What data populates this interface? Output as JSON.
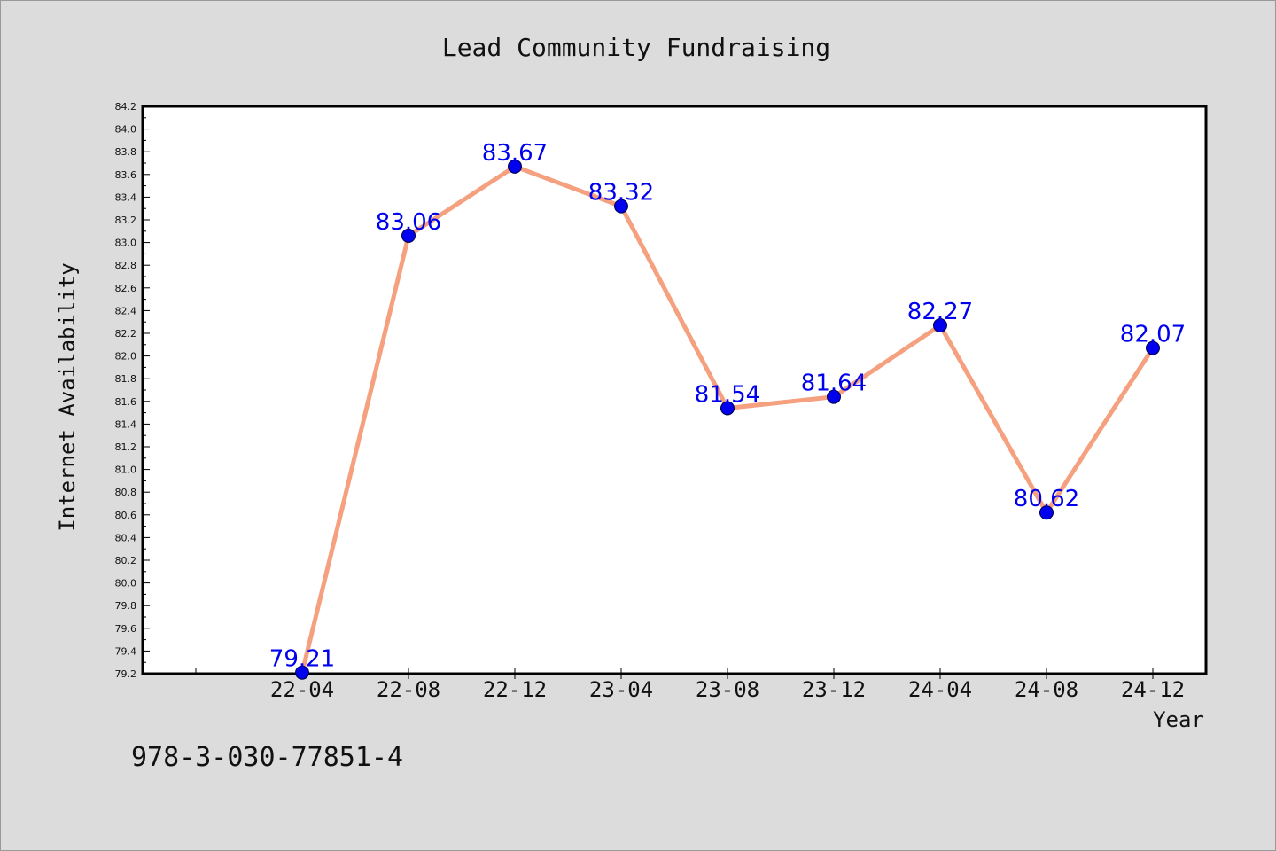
{
  "chart_data": {
    "type": "line",
    "title": "Lead Community Fundraising",
    "xlabel": "Year",
    "ylabel": "Internet Availability",
    "categories": [
      "22-04",
      "22-08",
      "22-12",
      "23-04",
      "23-08",
      "23-12",
      "24-04",
      "24-08",
      "24-12"
    ],
    "values": [
      79.21,
      83.06,
      83.67,
      83.32,
      81.54,
      81.64,
      82.27,
      80.62,
      82.07
    ],
    "data_labels": [
      "79.21",
      "83.06",
      "83.67",
      "83.32",
      "81.54",
      "81.64",
      "82.27",
      "80.62",
      "82.07"
    ],
    "ylim": [
      79.2,
      84.2
    ],
    "yticks": [
      "79.2",
      "79.4",
      "79.6",
      "79.8",
      "80.0",
      "80.2",
      "80.4",
      "80.6",
      "80.8",
      "81.0",
      "81.2",
      "81.4",
      "81.6",
      "81.8",
      "82.0",
      "82.2",
      "82.4",
      "82.6",
      "82.8",
      "83.0",
      "83.2",
      "83.4",
      "83.6",
      "83.8",
      "84.0",
      "84.2"
    ],
    "grid": false,
    "legend": "none",
    "colors": {
      "line": "#f5a07e",
      "marker": "#0000ee",
      "label": "#0000ee"
    }
  },
  "footer": {
    "code": "978-3-030-77851-4"
  }
}
